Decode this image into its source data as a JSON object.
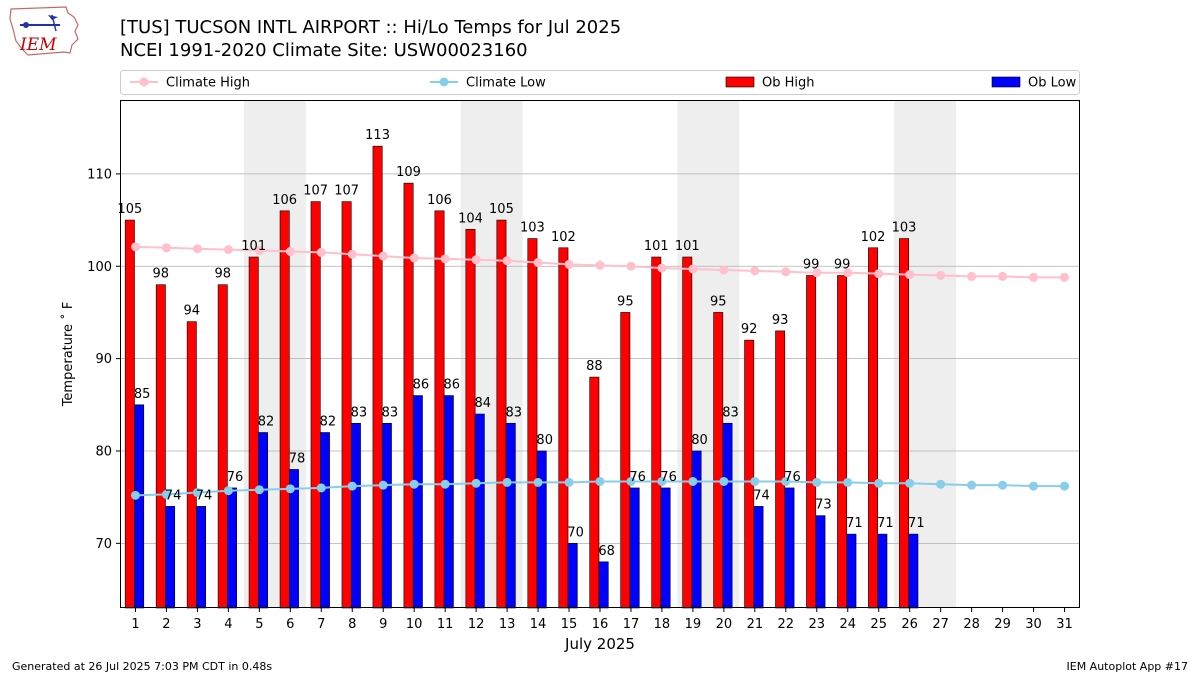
{
  "logo": {
    "text": "IEM",
    "color": "#cc0000"
  },
  "header": {
    "title_line1": "[TUS] TUCSON INTL AIRPORT :: Hi/Lo Temps for Jul 2025",
    "title_line2": "NCEI 1991-2020 Climate Site: USW00023160"
  },
  "footer": {
    "left": "Generated at 26 Jul 2025 7:03 PM CDT in 0.48s",
    "right": "IEM Autoplot App #17"
  },
  "colors": {
    "ob_high": "#ff0000",
    "ob_low": "#0000ff",
    "climate_high": "#ffc0cb",
    "climate_low": "#87ceeb",
    "weekend_shade": "#eeeeee",
    "grid": "#b0b0b0"
  },
  "chart_data": {
    "type": "bar",
    "title": "[TUS] TUCSON INTL AIRPORT :: Hi/Lo Temps for Jul 2025",
    "xlabel": "July 2025",
    "ylabel": "Temperature ˚ F",
    "ylim": [
      63,
      118
    ],
    "yticks": [
      70,
      80,
      90,
      100,
      110
    ],
    "grid": "horizontal",
    "legend_position": "top",
    "days": [
      1,
      2,
      3,
      4,
      5,
      6,
      7,
      8,
      9,
      10,
      11,
      12,
      13,
      14,
      15,
      16,
      17,
      18,
      19,
      20,
      21,
      22,
      23,
      24,
      25,
      26,
      27,
      28,
      29,
      30,
      31
    ],
    "weekend_shading": [
      [
        5,
        6
      ],
      [
        12,
        13
      ],
      [
        19,
        20
      ],
      [
        26,
        27
      ]
    ],
    "legend": [
      {
        "name": "Climate High",
        "kind": "line",
        "color": "#ffc0cb"
      },
      {
        "name": "Climate Low",
        "kind": "line",
        "color": "#87ceeb"
      },
      {
        "name": "Ob High",
        "kind": "bar",
        "color": "#ff0000"
      },
      {
        "name": "Ob Low",
        "kind": "bar",
        "color": "#0000ff"
      }
    ],
    "series": [
      {
        "name": "Ob High",
        "type": "bar",
        "values": [
          105,
          98,
          94,
          98,
          101,
          106,
          107,
          107,
          113,
          109,
          106,
          104,
          105,
          103,
          102,
          88,
          95,
          101,
          101,
          95,
          92,
          93,
          99,
          99,
          102,
          103
        ]
      },
      {
        "name": "Ob Low",
        "type": "bar",
        "values": [
          85,
          74,
          74,
          76,
          82,
          78,
          82,
          83,
          83,
          86,
          86,
          84,
          83,
          80,
          70,
          68,
          76,
          76,
          80,
          83,
          74,
          76,
          73,
          71,
          71,
          71
        ]
      },
      {
        "name": "Climate High",
        "type": "line",
        "values": [
          102.1,
          102.0,
          101.9,
          101.8,
          101.7,
          101.6,
          101.5,
          101.3,
          101.1,
          100.9,
          100.8,
          100.7,
          100.6,
          100.4,
          100.2,
          100.1,
          100.0,
          99.8,
          99.7,
          99.6,
          99.5,
          99.4,
          99.3,
          99.3,
          99.2,
          99.1,
          99.0,
          98.9,
          98.9,
          98.8,
          98.8
        ]
      },
      {
        "name": "Climate Low",
        "type": "line",
        "values": [
          75.2,
          75.3,
          75.5,
          75.7,
          75.8,
          75.9,
          76.0,
          76.2,
          76.3,
          76.4,
          76.4,
          76.5,
          76.6,
          76.6,
          76.6,
          76.7,
          76.7,
          76.7,
          76.7,
          76.7,
          76.7,
          76.7,
          76.6,
          76.6,
          76.5,
          76.5,
          76.4,
          76.3,
          76.3,
          76.2,
          76.2
        ]
      }
    ]
  }
}
